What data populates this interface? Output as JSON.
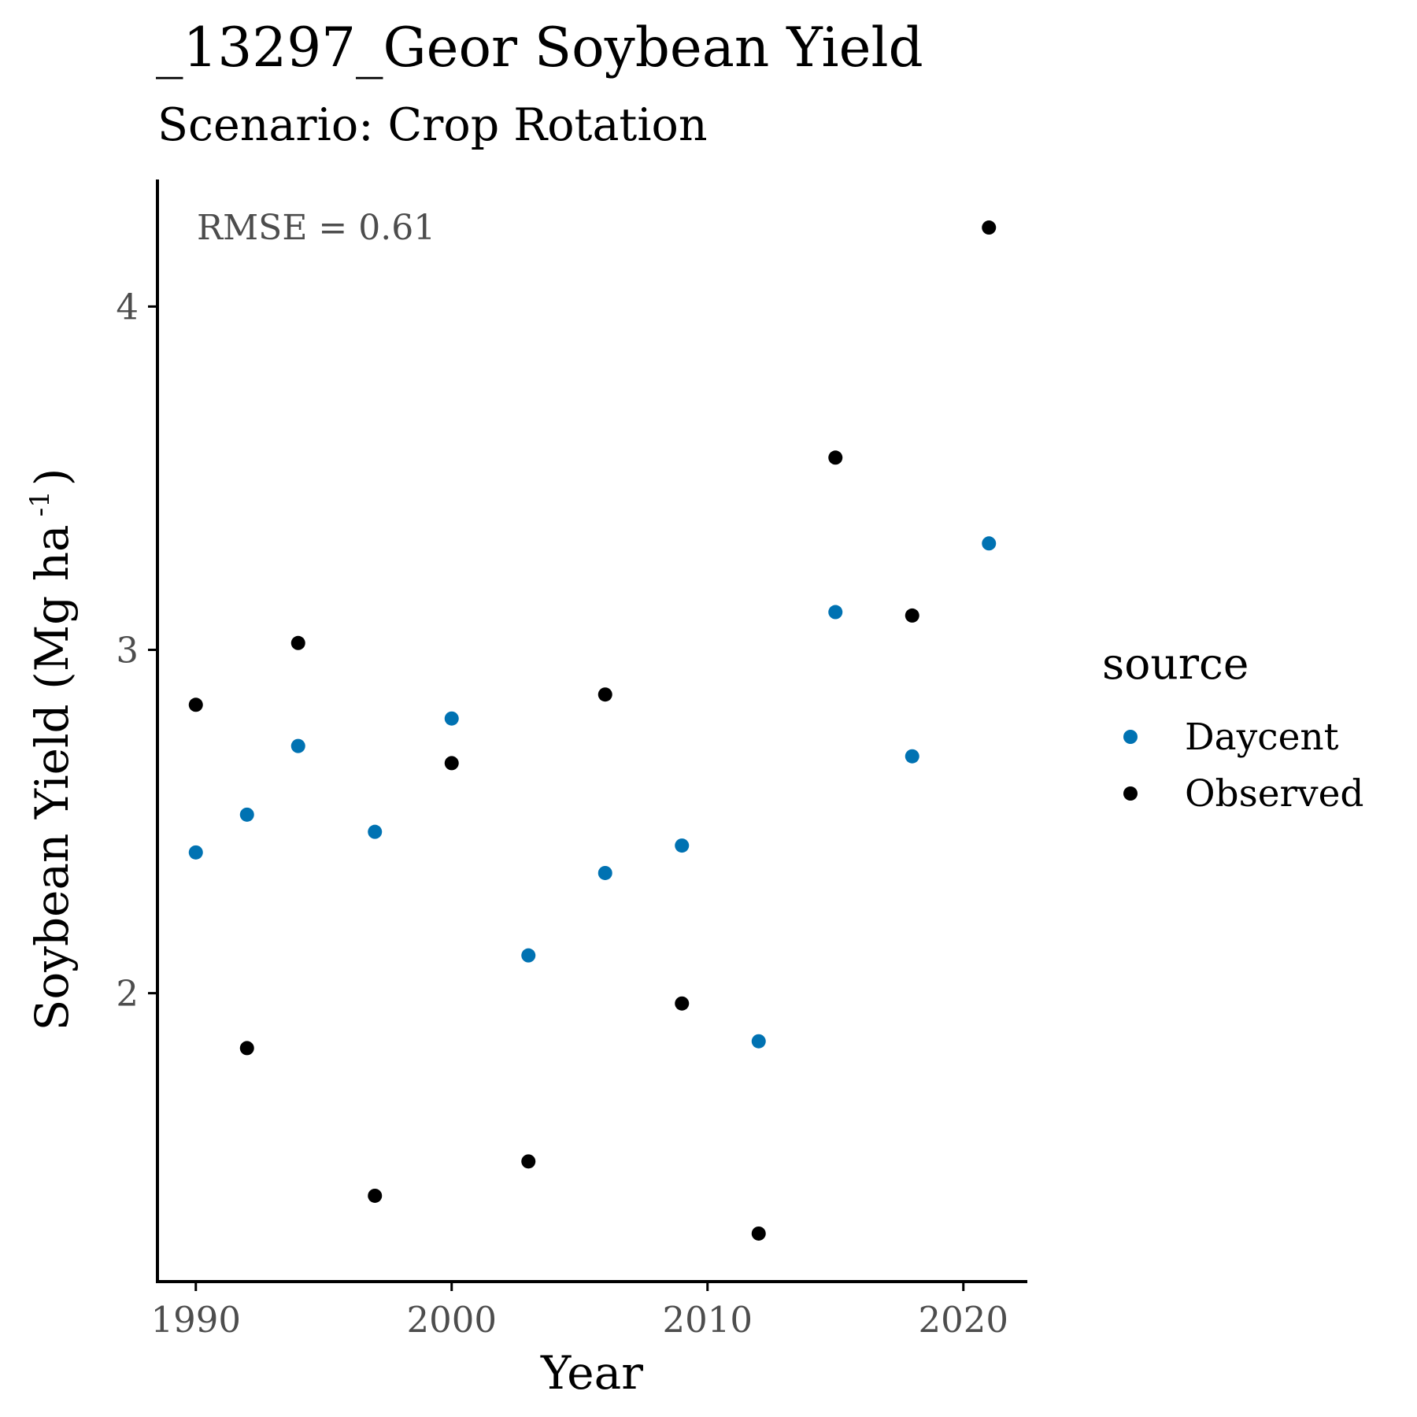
{
  "chart_data": {
    "type": "scatter",
    "title": "_13297_Geor Soybean Yield",
    "subtitle": "Scenario: Crop Rotation",
    "xlabel": "Year",
    "ylabel": "Soybean Yield (Mg ha",
    "ylabel_superscript": "-1",
    "ylabel_close": ")",
    "xlim": [
      1988.5,
      2022.5
    ],
    "ylim": [
      1.16,
      4.37
    ],
    "x_ticks": [
      1990,
      2000,
      2010,
      2020
    ],
    "y_ticks": [
      2,
      3,
      4
    ],
    "grid": false,
    "annotation": "RMSE = 0.61",
    "legend": {
      "title": "source",
      "placement": "right"
    },
    "series": [
      {
        "name": "Daycent",
        "color": "#0072B2",
        "points": [
          {
            "x": 1990,
            "y": 2.41
          },
          {
            "x": 1992,
            "y": 2.52
          },
          {
            "x": 1994,
            "y": 2.72
          },
          {
            "x": 1997,
            "y": 2.47
          },
          {
            "x": 2000,
            "y": 2.8
          },
          {
            "x": 2003,
            "y": 2.11
          },
          {
            "x": 2006,
            "y": 2.35
          },
          {
            "x": 2009,
            "y": 2.43
          },
          {
            "x": 2012,
            "y": 1.86
          },
          {
            "x": 2015,
            "y": 3.11
          },
          {
            "x": 2018,
            "y": 2.69
          },
          {
            "x": 2021,
            "y": 3.31
          }
        ]
      },
      {
        "name": "Observed",
        "color": "#000000",
        "points": [
          {
            "x": 1990,
            "y": 2.84
          },
          {
            "x": 1992,
            "y": 1.84
          },
          {
            "x": 1994,
            "y": 3.02
          },
          {
            "x": 1997,
            "y": 1.41
          },
          {
            "x": 2000,
            "y": 2.67
          },
          {
            "x": 2003,
            "y": 1.51
          },
          {
            "x": 2006,
            "y": 2.87
          },
          {
            "x": 2009,
            "y": 1.97
          },
          {
            "x": 2012,
            "y": 1.3
          },
          {
            "x": 2015,
            "y": 3.56
          },
          {
            "x": 2018,
            "y": 3.1
          },
          {
            "x": 2021,
            "y": 4.23
          }
        ]
      }
    ]
  }
}
